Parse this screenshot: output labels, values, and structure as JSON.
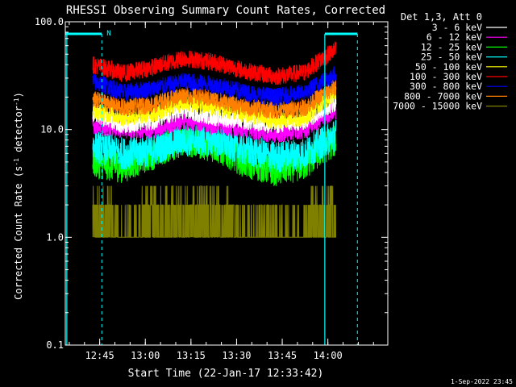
{
  "chart_data": {
    "type": "line",
    "title": "RHESSI Observing Summary Count Rates, Corrected",
    "xlabel": "Start Time (22-Jan-17 12:33:42)",
    "ylabel_main": "Corrected Count Rate (s",
    "ylabel_sup1": "-1",
    "ylabel_mid": " detector",
    "ylabel_sup2": "-1",
    "ylabel_end": ")",
    "y_scale": "log",
    "ylim": [
      0.1,
      100.0
    ],
    "y_ticks": [
      "0.1",
      "1.0",
      "10.0",
      "100.0"
    ],
    "xlim_minutes": [
      0,
      106
    ],
    "x_ticks": [
      {
        "label": "12:45",
        "minute": 11.3
      },
      {
        "label": "13:00",
        "minute": 26.3
      },
      {
        "label": "13:15",
        "minute": 41.3
      },
      {
        "label": "13:30",
        "minute": 56.3
      },
      {
        "label": "13:45",
        "minute": 71.3
      },
      {
        "label": "14:00",
        "minute": 86.3
      }
    ],
    "legend_header": "Det 1,3, Att 0",
    "series": [
      {
        "name": "3 - 6 keV",
        "color": "#ffffff",
        "x_min": [
          9,
          89
        ],
        "y": [
          14,
          11,
          12,
          15,
          13,
          12,
          11,
          12,
          18
        ]
      },
      {
        "name": "6 - 12 keV",
        "color": "#ff00ff",
        "x_min": [
          9,
          89
        ],
        "y": [
          11,
          10,
          10,
          12,
          11,
          10,
          9,
          10,
          15
        ]
      },
      {
        "name": "12 - 25 keV",
        "color": "#00ff00",
        "x_min": [
          9,
          89
        ],
        "y": [
          5,
          4.5,
          6,
          8,
          7,
          5,
          4.2,
          4.8,
          8
        ]
      },
      {
        "name": "25 - 50 keV",
        "color": "#00ffff",
        "x_min": [
          9,
          89
        ],
        "y": [
          7,
          6,
          6.5,
          8,
          8,
          6.5,
          5.5,
          6,
          9
        ]
      },
      {
        "name": "50 - 100 keV",
        "color": "#ffff00",
        "x_min": [
          9,
          89
        ],
        "y": [
          15,
          13,
          14,
          18,
          16,
          14,
          12,
          13,
          22
        ]
      },
      {
        "name": "100 - 300 keV",
        "color": "#ff0000",
        "x_min": [
          9,
          89
        ],
        "y": [
          40,
          33,
          38,
          46,
          42,
          35,
          31,
          34,
          55
        ]
      },
      {
        "name": "300 - 800 keV",
        "color": "#0000ff",
        "x_min": [
          9,
          89
        ],
        "y": [
          28,
          22,
          24,
          28,
          26,
          22,
          20,
          22,
          33
        ]
      },
      {
        "name": "800 - 7000 keV",
        "color": "#ff8000",
        "x_min": [
          9,
          89
        ],
        "y": [
          19,
          16,
          17,
          21,
          19,
          16,
          15,
          16,
          25
        ]
      },
      {
        "name": "7000 - 15000 keV",
        "color": "#808000",
        "x_min": [
          9,
          89
        ],
        "y": [
          1.5,
          1.2,
          1.4,
          1.8,
          1.7,
          1.2,
          1.1,
          1.2,
          2.0
        ]
      }
    ],
    "annotations": {
      "n_marker": "N",
      "bars_minutes": [
        [
          0,
          12
        ],
        [
          85.3,
          96
        ]
      ],
      "dashed_lines_minutes": [
        12.0,
        96.0
      ],
      "solid_lines_minutes": [
        0.5,
        85.3
      ]
    },
    "footer_date": "1-Sep-2022 23:45"
  },
  "colors": {
    "axis": "#ffffff",
    "cyan_overlay": "#00ffff",
    "background": "#000000"
  }
}
